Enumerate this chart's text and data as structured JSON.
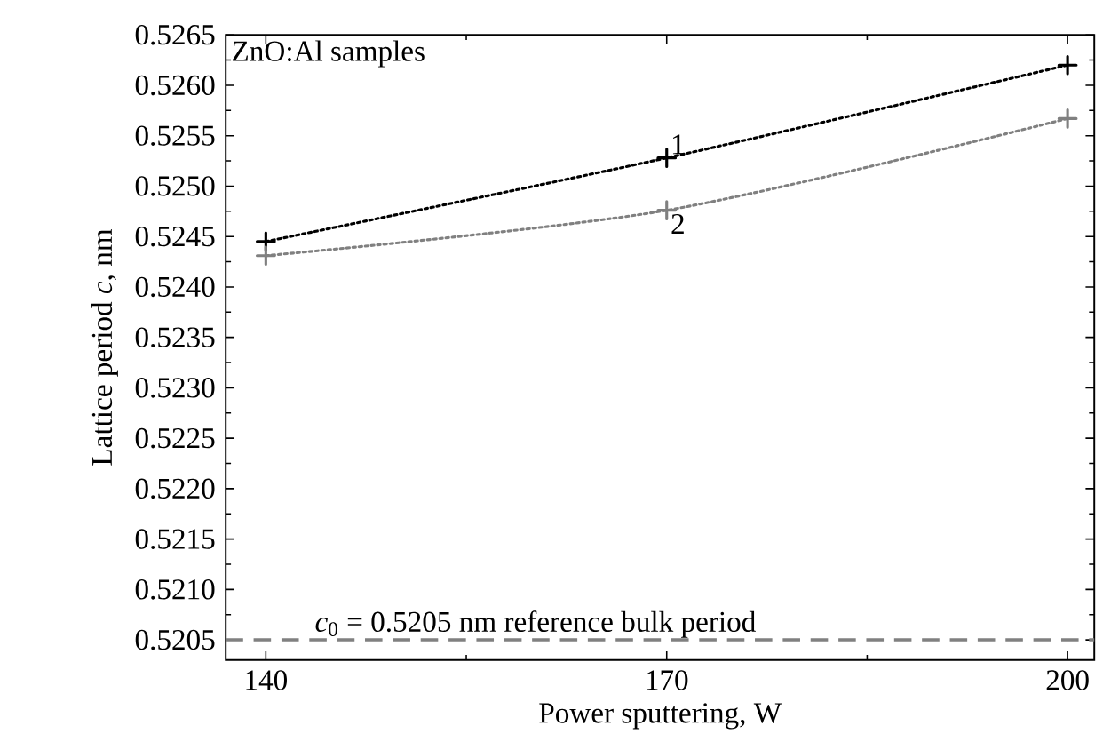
{
  "chart_data": {
    "type": "line",
    "xlabel": "Power sputtering, W",
    "ylabel": "Lattice period *c*, nm",
    "annotations": [
      "ZnO:Al samples"
    ],
    "x": [
      140,
      170,
      200
    ],
    "series": [
      {
        "name": "1",
        "color": "#000000",
        "values": [
          0.52445,
          0.52528,
          0.5262
        ]
      },
      {
        "name": "2",
        "color": "#808080",
        "values": [
          0.52431,
          0.52476,
          0.52567
        ]
      }
    ],
    "marker": "cross",
    "line_style": "dotted",
    "ref_lines": [
      {
        "axis": "y",
        "value": 0.5205,
        "label": "*c*$_{0}$ = 0.5205 nm reference bulk period",
        "color": "#808080",
        "line_style": "dashed"
      }
    ],
    "xlim": [
      137,
      202
    ],
    "ylim": [
      0.5203,
      0.5265
    ],
    "xticks": [
      140,
      170,
      200
    ],
    "yticks": [
      {
        "value": 0.5205,
        "label": "0.5205"
      },
      {
        "value": 0.521,
        "label": "0.5210"
      },
      {
        "value": 0.5215,
        "label": "0.5215"
      },
      {
        "value": 0.522,
        "label": "0.5220"
      },
      {
        "value": 0.5225,
        "label": "0.5225"
      },
      {
        "value": 0.523,
        "label": "0.5230"
      },
      {
        "value": 0.5235,
        "label": "0.5235"
      },
      {
        "value": 0.524,
        "label": "0.5240"
      },
      {
        "value": 0.5245,
        "label": "0.5245"
      },
      {
        "value": 0.525,
        "label": "0.5250"
      },
      {
        "value": 0.5255,
        "label": "0.5255"
      },
      {
        "value": 0.526,
        "label": "0.5260"
      },
      {
        "value": 0.5265,
        "label": "0.5265"
      }
    ]
  }
}
